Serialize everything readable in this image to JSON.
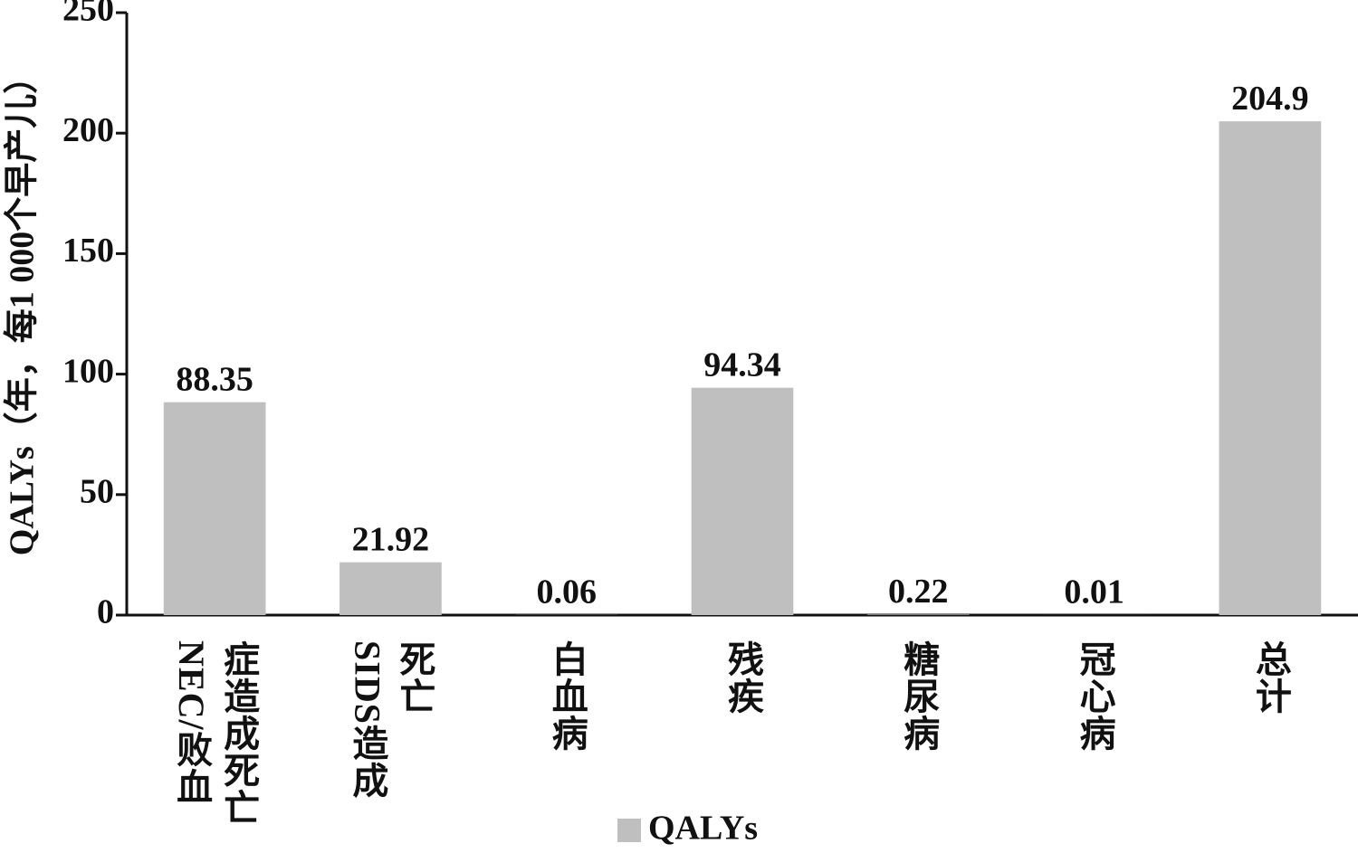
{
  "chart_data": {
    "type": "bar",
    "y_label": "QALYs（年，每1 000个早产儿）",
    "categories": [
      "NEC/败血症造成死亡",
      "SIDS造成死亡",
      "白血病",
      "残疾",
      "糖尿病",
      "冠心病",
      "总计"
    ],
    "series": [
      {
        "name": "QALYs",
        "color": "#bfbfbf",
        "values": [
          88.35,
          21.92,
          0.06,
          94.34,
          0.22,
          0.01,
          204.9
        ]
      }
    ],
    "ylim": [
      0,
      250
    ],
    "yticks": [
      0,
      50,
      100,
      150,
      200,
      250
    ],
    "grid": false,
    "legend": "bottom"
  }
}
